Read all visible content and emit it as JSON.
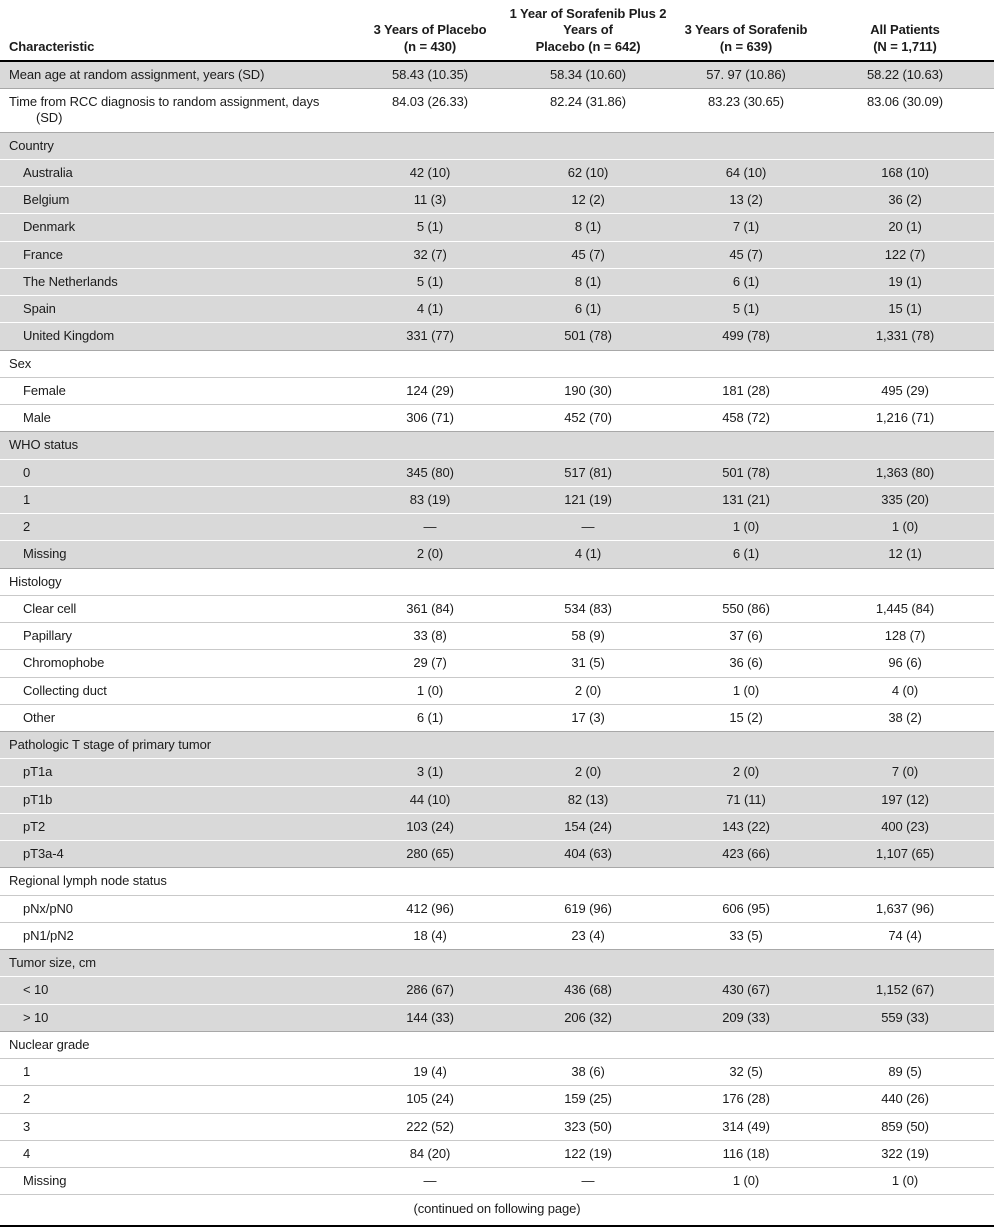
{
  "table": {
    "header": {
      "characteristic": "Characteristic",
      "columns": [
        {
          "lines": [
            "3 Years of Placebo",
            "(n = 430)"
          ]
        },
        {
          "lines": [
            "1 Year of Sorafenib Plus 2 Years of",
            "Placebo (n = 642)"
          ]
        },
        {
          "lines": [
            "3 Years of Sorafenib",
            "(n = 639)"
          ]
        },
        {
          "lines": [
            "All Patients",
            "(N = 1,711)"
          ]
        }
      ]
    },
    "sections": [
      {
        "header": null,
        "shaded": true,
        "rows": [
          {
            "label": "Mean age at random assignment, years (SD)",
            "values": [
              "58.43 (10.35)",
              "58.34 (10.60)",
              "57. 97 (10.86)",
              "58.22 (10.63)"
            ]
          }
        ]
      },
      {
        "header": null,
        "shaded": false,
        "rows": [
          {
            "label": "Time from RCC diagnosis to random assignment, days",
            "label2": "(SD)",
            "values": [
              "84.03 (26.33)",
              "82.24 (31.86)",
              "83.23 (30.65)",
              "83.06 (30.09)"
            ]
          }
        ]
      },
      {
        "header": "Country",
        "shaded": true,
        "rows": [
          {
            "label": "Australia",
            "values": [
              "42 (10)",
              "62 (10)",
              "64 (10)",
              "168 (10)"
            ]
          },
          {
            "label": "Belgium",
            "values": [
              "11 (3)",
              "12 (2)",
              "13 (2)",
              "36 (2)"
            ]
          },
          {
            "label": "Denmark",
            "values": [
              "5 (1)",
              "8 (1)",
              "7 (1)",
              "20 (1)"
            ]
          },
          {
            "label": "France",
            "values": [
              "32 (7)",
              "45 (7)",
              "45 (7)",
              "122 (7)"
            ]
          },
          {
            "label": "The Netherlands",
            "values": [
              "5 (1)",
              "8 (1)",
              "6 (1)",
              "19 (1)"
            ]
          },
          {
            "label": "Spain",
            "values": [
              "4 (1)",
              "6 (1)",
              "5 (1)",
              "15 (1)"
            ]
          },
          {
            "label": "United Kingdom",
            "values": [
              "331 (77)",
              "501 (78)",
              "499 (78)",
              "1,331 (78)"
            ]
          }
        ]
      },
      {
        "header": "Sex",
        "shaded": false,
        "rows": [
          {
            "label": "Female",
            "values": [
              "124 (29)",
              "190 (30)",
              "181 (28)",
              "495 (29)"
            ]
          },
          {
            "label": "Male",
            "values": [
              "306 (71)",
              "452 (70)",
              "458 (72)",
              "1,216 (71)"
            ]
          }
        ]
      },
      {
        "header": "WHO status",
        "shaded": true,
        "rows": [
          {
            "label": "0",
            "values": [
              "345 (80)",
              "517 (81)",
              "501 (78)",
              "1,363 (80)"
            ]
          },
          {
            "label": "1",
            "values": [
              "83 (19)",
              "121 (19)",
              "131 (21)",
              "335 (20)"
            ]
          },
          {
            "label": "2",
            "values": [
              "—",
              "—",
              "1 (0)",
              "1 (0)"
            ]
          },
          {
            "label": "Missing",
            "values": [
              "2 (0)",
              "4 (1)",
              "6 (1)",
              "12 (1)"
            ]
          }
        ]
      },
      {
        "header": "Histology",
        "shaded": false,
        "rows": [
          {
            "label": "Clear cell",
            "values": [
              "361 (84)",
              "534 (83)",
              "550 (86)",
              "1,445 (84)"
            ]
          },
          {
            "label": "Papillary",
            "values": [
              "33 (8)",
              "58 (9)",
              "37 (6)",
              "128 (7)"
            ]
          },
          {
            "label": "Chromophobe",
            "values": [
              "29 (7)",
              "31 (5)",
              "36 (6)",
              "96 (6)"
            ]
          },
          {
            "label": "Collecting duct",
            "values": [
              "1 (0)",
              "2 (0)",
              "1 (0)",
              "4 (0)"
            ]
          },
          {
            "label": "Other",
            "values": [
              "6 (1)",
              "17 (3)",
              "15 (2)",
              "38 (2)"
            ]
          }
        ]
      },
      {
        "header": "Pathologic T stage of primary tumor",
        "shaded": true,
        "rows": [
          {
            "label": "pT1a",
            "values": [
              "3 (1)",
              "2 (0)",
              "2 (0)",
              "7 (0)"
            ]
          },
          {
            "label": "pT1b",
            "values": [
              "44 (10)",
              "82 (13)",
              "71 (11)",
              "197 (12)"
            ]
          },
          {
            "label": "pT2",
            "values": [
              "103 (24)",
              "154 (24)",
              "143 (22)",
              "400 (23)"
            ]
          },
          {
            "label": "pT3a-4",
            "values": [
              "280 (65)",
              "404 (63)",
              "423 (66)",
              "1,107 (65)"
            ]
          }
        ]
      },
      {
        "header": "Regional lymph node status",
        "shaded": false,
        "rows": [
          {
            "label": "pNx/pN0",
            "values": [
              "412 (96)",
              "619 (96)",
              "606 (95)",
              "1,637 (96)"
            ]
          },
          {
            "label": "pN1/pN2",
            "values": [
              "18 (4)",
              "23 (4)",
              "33 (5)",
              "74 (4)"
            ]
          }
        ]
      },
      {
        "header": "Tumor size, cm",
        "shaded": true,
        "rows": [
          {
            "label": "< 10",
            "values": [
              "286 (67)",
              "436 (68)",
              "430 (67)",
              "1,152 (67)"
            ]
          },
          {
            "label": "> 10",
            "values": [
              "144 (33)",
              "206 (32)",
              "209 (33)",
              "559 (33)"
            ]
          }
        ]
      },
      {
        "header": "Nuclear grade",
        "shaded": false,
        "rows": [
          {
            "label": "1",
            "values": [
              "19 (4)",
              "38 (6)",
              "32 (5)",
              "89 (5)"
            ]
          },
          {
            "label": "2",
            "values": [
              "105 (24)",
              "159 (25)",
              "176 (28)",
              "440 (26)"
            ]
          },
          {
            "label": "3",
            "values": [
              "222 (52)",
              "323 (50)",
              "314 (49)",
              "859 (50)"
            ]
          },
          {
            "label": "4",
            "values": [
              "84 (20)",
              "122 (19)",
              "116 (18)",
              "322 (19)"
            ]
          },
          {
            "label": "Missing",
            "values": [
              "—",
              "—",
              "1 (0)",
              "1 (0)"
            ]
          }
        ]
      }
    ],
    "footer": "(continued on following page)"
  },
  "colors": {
    "shaded_row": "#d9d9d9",
    "rule_dark": "#000000",
    "separator_on_shade": "#ffffff",
    "separator_on_white": "#c9c9c9",
    "separator_mixed": "#a8a8a8"
  }
}
